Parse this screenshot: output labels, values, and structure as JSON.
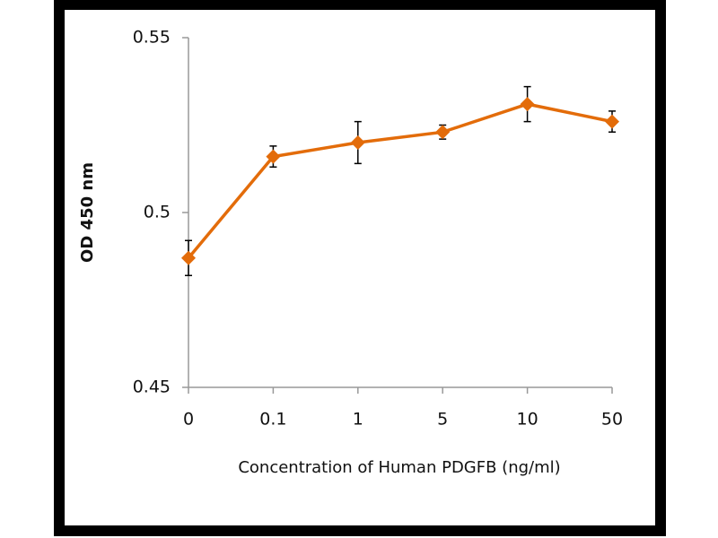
{
  "chart_data": {
    "type": "line",
    "x_label": "Concentration of Human PDGFB (ng/ml)",
    "y_label": "OD  450 nm",
    "categories": [
      "0",
      "0.1",
      "1",
      "5",
      "10",
      "50"
    ],
    "values": [
      0.487,
      0.516,
      0.52,
      0.523,
      0.531,
      0.526
    ],
    "errors": [
      0.005,
      0.003,
      0.006,
      0.002,
      0.005,
      0.003
    ],
    "color": "#e36c0a",
    "ylim": [
      0.45,
      0.55
    ],
    "yticks": [
      0.45,
      0.5,
      0.55
    ],
    "grid": false
  }
}
